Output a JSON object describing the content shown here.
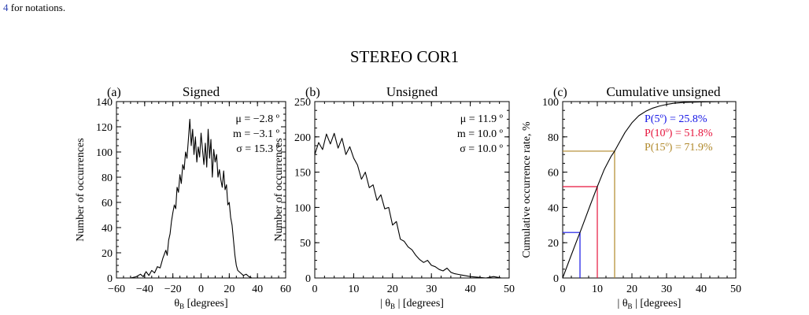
{
  "caption": {
    "ref": "4",
    "text": " for notations."
  },
  "figure_title": "STEREO COR1",
  "colors": {
    "blue": "#1414e6",
    "red": "#e6143c",
    "gold": "#b0882a",
    "black": "#000000"
  },
  "chart_data": [
    {
      "type": "line",
      "panel_label": "(a)",
      "title": "Signed",
      "xlabel": "θB [degrees]",
      "ylabel": "Number of occurrences",
      "xlim": [
        -60,
        60
      ],
      "ylim": [
        0,
        140
      ],
      "xticks": [
        -60,
        -40,
        -20,
        0,
        20,
        40,
        60
      ],
      "yticks": [
        0,
        20,
        40,
        60,
        80,
        100,
        120,
        140
      ],
      "stats": [
        "μ = −2.8 º",
        "m = −3.1 º",
        "σ = 15.3 º"
      ],
      "x": [
        -60,
        -55,
        -50,
        -46,
        -43,
        -41,
        -39,
        -37,
        -35,
        -33,
        -31,
        -29,
        -27,
        -25,
        -24,
        -23,
        -22,
        -21,
        -20,
        -19,
        -18,
        -17,
        -16,
        -15,
        -14,
        -13,
        -12,
        -11,
        -10,
        -9,
        -8,
        -7,
        -6,
        -5,
        -4,
        -3,
        -2,
        -1,
        0,
        1,
        2,
        3,
        4,
        5,
        6,
        7,
        8,
        9,
        10,
        11,
        12,
        13,
        14,
        15,
        16,
        17,
        18,
        19,
        20,
        21,
        22,
        23,
        24,
        25,
        26,
        28,
        30,
        32,
        34,
        36,
        40,
        45,
        50,
        55,
        60
      ],
      "y": [
        0,
        0,
        0,
        1,
        3,
        1,
        5,
        2,
        6,
        4,
        9,
        8,
        16,
        22,
        18,
        30,
        35,
        45,
        52,
        58,
        55,
        72,
        68,
        82,
        75,
        90,
        86,
        100,
        95,
        110,
        126,
        105,
        118,
        98,
        112,
        92,
        104,
        96,
        115,
        102,
        90,
        107,
        88,
        118,
        95,
        110,
        80,
        102,
        92,
        98,
        80,
        86,
        78,
        72,
        85,
        70,
        74,
        58,
        60,
        48,
        42,
        30,
        18,
        10,
        6,
        4,
        2,
        3,
        1,
        0,
        0,
        0,
        0,
        0,
        0
      ]
    },
    {
      "type": "line",
      "panel_label": "(b)",
      "title": "Unsigned",
      "xlabel": "| θB | [degrees]",
      "ylabel": "Number of occurrences",
      "xlim": [
        0,
        50
      ],
      "ylim": [
        0,
        250
      ],
      "xticks": [
        0,
        10,
        20,
        30,
        40,
        50
      ],
      "yticks": [
        0,
        50,
        100,
        150,
        200,
        250
      ],
      "stats": [
        "μ = 11.9 º",
        "m = 10.0 º",
        "σ = 10.0 º"
      ],
      "x": [
        0,
        1,
        2,
        3,
        4,
        5,
        6,
        7,
        8,
        9,
        10,
        11,
        12,
        13,
        14,
        15,
        16,
        17,
        18,
        19,
        20,
        21,
        22,
        23,
        24,
        25,
        26,
        27,
        28,
        29,
        30,
        31,
        32,
        33,
        34,
        35,
        36,
        37,
        38,
        39,
        40,
        42,
        44,
        46,
        48,
        50
      ],
      "y": [
        175,
        192,
        182,
        204,
        190,
        205,
        184,
        198,
        175,
        186,
        170,
        160,
        140,
        150,
        128,
        132,
        110,
        118,
        98,
        100,
        75,
        80,
        55,
        52,
        44,
        40,
        32,
        26,
        22,
        25,
        18,
        16,
        12,
        10,
        14,
        8,
        6,
        5,
        4,
        3,
        2,
        1,
        0,
        2,
        0,
        0
      ]
    },
    {
      "type": "line",
      "panel_label": "(c)",
      "title": "Cumulative unsigned",
      "xlabel": "| θB | [degrees]",
      "ylabel": "Cumulative occurrence rate, %",
      "xlim": [
        0,
        50
      ],
      "ylim": [
        0,
        100
      ],
      "xticks": [
        0,
        10,
        20,
        30,
        40,
        50
      ],
      "yticks": [
        0,
        20,
        40,
        60,
        80,
        100
      ],
      "x": [
        0,
        2,
        4,
        5,
        6,
        8,
        10,
        12,
        14,
        15,
        16,
        18,
        20,
        22,
        24,
        26,
        28,
        30,
        32,
        35,
        40,
        45,
        50
      ],
      "y": [
        0,
        10.5,
        20.8,
        25.8,
        31,
        41.5,
        51.8,
        61.5,
        69,
        71.9,
        75.5,
        82.5,
        88,
        92,
        94.5,
        96.3,
        97.5,
        98.4,
        99,
        99.5,
        99.8,
        99.95,
        100
      ],
      "markers": [
        {
          "x": 5,
          "y": 25.8,
          "color": "#1414e6",
          "label": "P(5º) =  25.8%"
        },
        {
          "x": 10,
          "y": 51.8,
          "color": "#e6143c",
          "label": "P(10º) =  51.8%"
        },
        {
          "x": 15,
          "y": 71.9,
          "color": "#b0882a",
          "label": "P(15º) =  71.9%"
        }
      ]
    }
  ]
}
